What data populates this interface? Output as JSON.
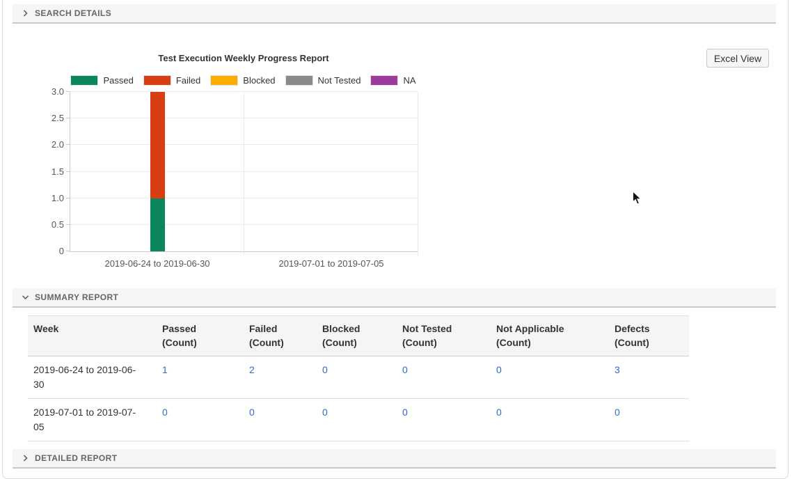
{
  "sections": {
    "search_details": {
      "label": "SEARCH DETAILS",
      "state": "collapsed"
    },
    "summary_report": {
      "label": "SUMMARY REPORT",
      "state": "expanded"
    },
    "detailed_report": {
      "label": "DETAILED REPORT",
      "state": "collapsed"
    }
  },
  "toolbar": {
    "excel_view_label": "Excel View"
  },
  "chart_data": {
    "type": "bar",
    "stacked": true,
    "title": "Test Execution Weekly Progress Report",
    "categories": [
      "2019-06-24 to 2019-06-30",
      "2019-07-01 to 2019-07-05"
    ],
    "series": [
      {
        "name": "Passed",
        "color": "#0b875b",
        "values": [
          1,
          0
        ]
      },
      {
        "name": "Failed",
        "color": "#d93d12",
        "values": [
          2,
          0
        ]
      },
      {
        "name": "Blocked",
        "color": "#ffab00",
        "values": [
          0,
          0
        ]
      },
      {
        "name": "Not Tested",
        "color": "#8a8a8a",
        "values": [
          0,
          0
        ]
      },
      {
        "name": "NA",
        "color": "#9e3a9e",
        "values": [
          0,
          0
        ]
      }
    ],
    "xlabel": "",
    "ylabel": "",
    "ylim": [
      0,
      3
    ],
    "yticks": [
      {
        "value": 0,
        "label": "0"
      },
      {
        "value": 0.5,
        "label": "0.5"
      },
      {
        "value": 1,
        "label": "1.0"
      },
      {
        "value": 1.5,
        "label": "1.5"
      },
      {
        "value": 2,
        "label": "2.0"
      },
      {
        "value": 2.5,
        "label": "2.5"
      },
      {
        "value": 3,
        "label": "3.0"
      }
    ],
    "grid": true,
    "legend_position": "top"
  },
  "summary_table": {
    "columns": [
      {
        "label": "Week",
        "sub": ""
      },
      {
        "label": "Passed",
        "sub": "(Count)"
      },
      {
        "label": "Failed",
        "sub": "(Count)"
      },
      {
        "label": "Blocked",
        "sub": "(Count)"
      },
      {
        "label": "Not Tested",
        "sub": "(Count)"
      },
      {
        "label": "Not Applicable",
        "sub": "(Count)"
      },
      {
        "label": "Defects",
        "sub": "(Count)"
      }
    ],
    "rows": [
      {
        "week": "2019-06-24 to 2019-06-30",
        "values": [
          "1",
          "2",
          "0",
          "0",
          "0",
          "3"
        ]
      },
      {
        "week": "2019-07-01 to 2019-07-05",
        "values": [
          "0",
          "0",
          "0",
          "0",
          "0",
          "0"
        ]
      }
    ],
    "link_color": "#2a6ec8"
  }
}
